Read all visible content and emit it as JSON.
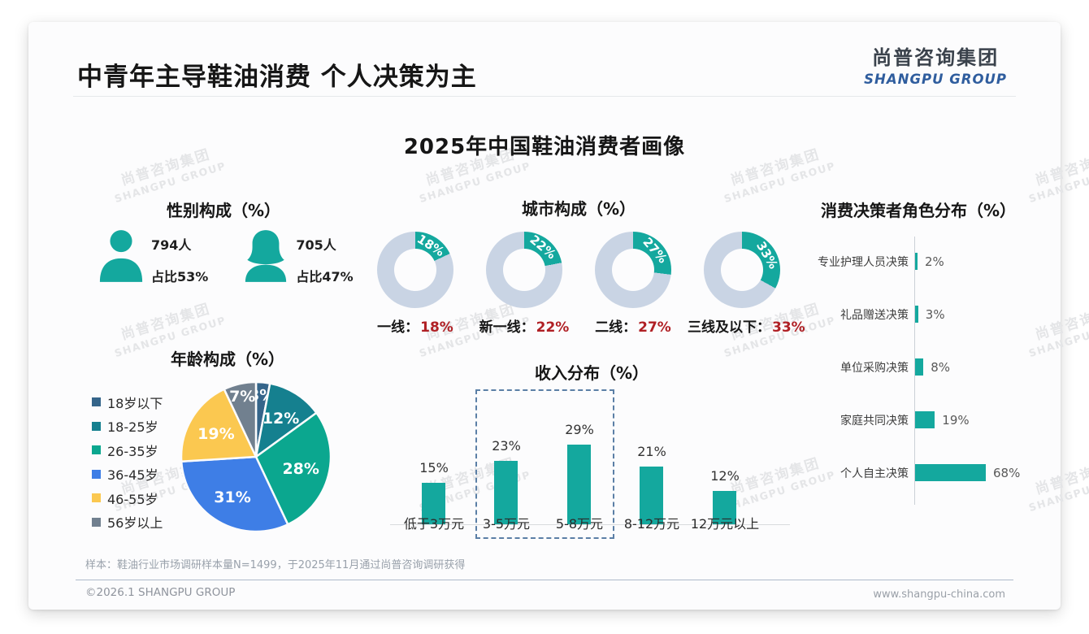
{
  "colors": {
    "teal": "#14A89E",
    "donut_track": "#C9D4E4",
    "value_red": "#B02025",
    "logo_blue": "#2F5D9E",
    "dashed_box": "#5B7FA6",
    "pie": [
      "#35658A",
      "#15808F",
      "#0BA78F",
      "#3E7EE6",
      "#FBC850",
      "#71808F"
    ]
  },
  "header": {
    "title": "中青年主导鞋油消费 个人决策为主",
    "logo_cn": "尚普咨询集团",
    "logo_en": "SHANGPU GROUP"
  },
  "subtitle": "2025年中国鞋油消费者画像",
  "watermark": {
    "line1": "尚普咨询集团",
    "line2": "SHANGPU GROUP"
  },
  "gender": {
    "title": "性别构成（%）",
    "male": {
      "icon": "male-icon",
      "count": "794人",
      "share": "占比53%",
      "value": 53
    },
    "female": {
      "icon": "female-icon",
      "count": "705人",
      "share": "占比47%",
      "value": 47
    }
  },
  "chart_data": [
    {
      "type": "donut-set",
      "title": "城市构成（%）",
      "items": [
        {
          "label": "一线",
          "value": 18,
          "value_label": "18%"
        },
        {
          "label": "新一线",
          "value": 22,
          "value_label": "22%"
        },
        {
          "label": "二线",
          "value": 27,
          "value_label": "27%"
        },
        {
          "label": "三线及以下",
          "value": 33,
          "value_label": "33%"
        }
      ],
      "colors": {
        "segment": "#14A89E",
        "track": "#C9D4E4"
      }
    },
    {
      "type": "pie",
      "title": "年龄构成（%）",
      "categories": [
        "18岁以下",
        "18-25岁",
        "26-35岁",
        "36-45岁",
        "46-55岁",
        "56岁以上"
      ],
      "values": [
        3,
        12,
        28,
        31,
        19,
        7
      ],
      "colors": [
        "#35658A",
        "#15808F",
        "#0BA78F",
        "#3E7EE6",
        "#FBC850",
        "#71808F"
      ],
      "legend_position": "left",
      "start_angle": "top-clockwise"
    },
    {
      "type": "bar",
      "title": "收入分布（%）",
      "categories": [
        "低于3万元",
        "3-5万元",
        "5-8万元",
        "8-12万元",
        "12万元以上"
      ],
      "values": [
        15,
        23,
        29,
        21,
        12
      ],
      "ylim": [
        0,
        29
      ],
      "highlight": {
        "categories": [
          "3-5万元",
          "5-8万元"
        ],
        "style": "dashed-box"
      }
    },
    {
      "type": "hbar",
      "title": "消费决策者角色分布（%）",
      "categories": [
        "专业护理人员决策",
        "礼品赠送决策",
        "单位采购决策",
        "家庭共同决策",
        "个人自主决策"
      ],
      "values": [
        2,
        3,
        8,
        19,
        68
      ],
      "xlim": [
        0,
        68
      ]
    }
  ],
  "footer": {
    "footnote": "样本：鞋油行业市场调研样本量N=1499，于2025年11月通过尚普咨询调研获得",
    "copyright": "©2026.1 SHANGPU GROUP",
    "website": "www.shangpu-china.com"
  }
}
